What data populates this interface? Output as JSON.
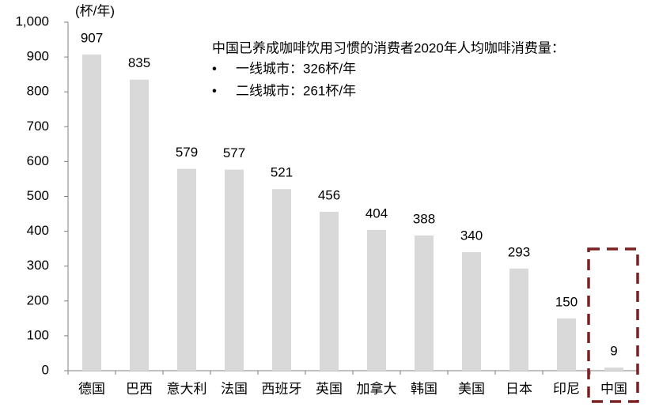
{
  "chart_data": {
    "type": "bar",
    "unit_label": "(杯/年)",
    "annotation": {
      "heading": "中国已养成咖啡饮用习惯的消费者2020年人均咖啡消费量：",
      "items": [
        "一线城市：326杯/年",
        "二线城市：261杯/年"
      ]
    },
    "categories": [
      "德国",
      "巴西",
      "意大利",
      "法国",
      "西班牙",
      "英国",
      "加拿大",
      "韩国",
      "美国",
      "日本",
      "印尼",
      "中国"
    ],
    "values": [
      907,
      835,
      579,
      577,
      521,
      456,
      404,
      388,
      340,
      293,
      150,
      9
    ],
    "color": "#d9d9d9",
    "highlight_color": "#7b2121",
    "ylim": [
      0,
      1000
    ],
    "yticks": [
      0,
      100,
      200,
      300,
      400,
      500,
      600,
      700,
      800,
      900,
      {
        "value": 1000,
        "label": "1,000"
      }
    ],
    "grid": false
  }
}
